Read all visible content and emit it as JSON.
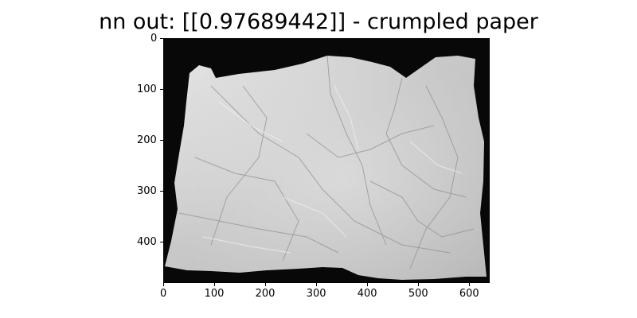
{
  "title": "nn out: [[0.97689442]] - crumpled paper",
  "image": {
    "description_icon": "crumpled-paper-grayscale-photo",
    "background_color": "#000000",
    "paper_color": "#cfcfcf"
  },
  "axes": {
    "x_ticks": [
      "0",
      "100",
      "200",
      "300",
      "400",
      "500",
      "600"
    ],
    "y_ticks": [
      "0",
      "100",
      "200",
      "300",
      "400"
    ],
    "x_range": [
      0,
      640
    ],
    "y_range": [
      0,
      480
    ]
  }
}
